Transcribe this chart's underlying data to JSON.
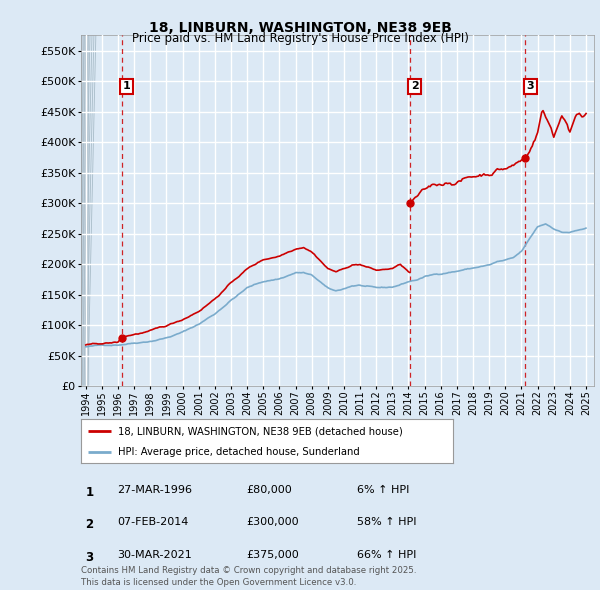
{
  "title": "18, LINBURN, WASHINGTON, NE38 9EB",
  "subtitle": "Price paid vs. HM Land Registry's House Price Index (HPI)",
  "background_color": "#dce9f5",
  "plot_bg_color": "#dce9f5",
  "grid_color": "#ffffff",
  "ylim": [
    0,
    575000
  ],
  "yticks": [
    0,
    50000,
    100000,
    150000,
    200000,
    250000,
    300000,
    350000,
    400000,
    450000,
    500000,
    550000
  ],
  "xmin_year": 1993.7,
  "xmax_year": 2025.5,
  "sale_dates": [
    1996.23,
    2014.09,
    2021.25
  ],
  "sale_prices": [
    80000,
    300000,
    375000
  ],
  "sale_labels": [
    "1",
    "2",
    "3"
  ],
  "red_line_color": "#cc0000",
  "blue_line_color": "#7aabcc",
  "dashed_line_color": "#cc0000",
  "footnote": "Contains HM Land Registry data © Crown copyright and database right 2025.\nThis data is licensed under the Open Government Licence v3.0.",
  "legend_entries": [
    "18, LINBURN, WASHINGTON, NE38 9EB (detached house)",
    "HPI: Average price, detached house, Sunderland"
  ],
  "table_rows": [
    [
      "1",
      "27-MAR-1996",
      "£80,000",
      "6% ↑ HPI"
    ],
    [
      "2",
      "07-FEB-2014",
      "£300,000",
      "58% ↑ HPI"
    ],
    [
      "3",
      "30-MAR-2021",
      "£375,000",
      "66% ↑ HPI"
    ]
  ],
  "xtick_years": [
    1994,
    1995,
    1996,
    1997,
    1998,
    1999,
    2000,
    2001,
    2002,
    2003,
    2004,
    2005,
    2006,
    2007,
    2008,
    2009,
    2010,
    2011,
    2012,
    2013,
    2014,
    2015,
    2016,
    2017,
    2018,
    2019,
    2020,
    2021,
    2022,
    2023,
    2024,
    2025
  ]
}
